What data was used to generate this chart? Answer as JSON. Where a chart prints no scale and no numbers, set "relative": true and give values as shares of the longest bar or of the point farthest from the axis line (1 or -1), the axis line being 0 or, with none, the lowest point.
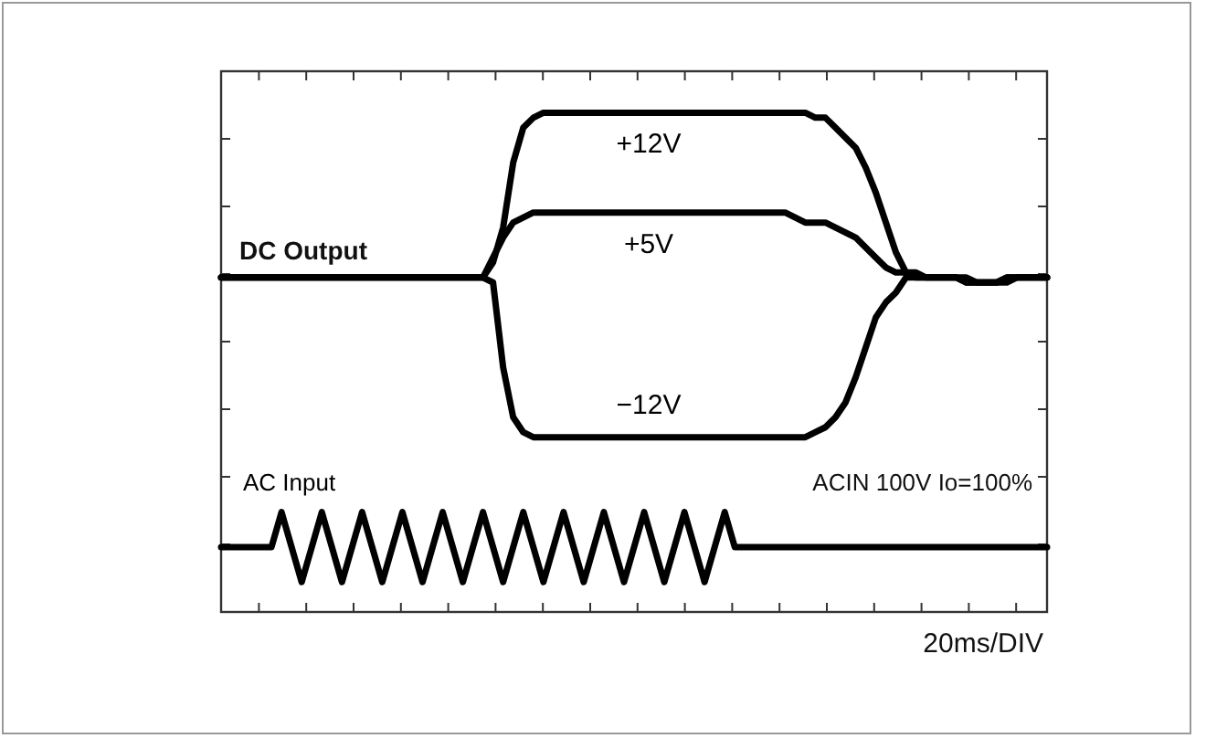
{
  "chart_data": {
    "type": "line",
    "relative": true,
    "xlabel": "20ms/DIV",
    "categories": [
      null,
      null,
      null,
      null,
      null,
      null,
      null,
      null,
      null,
      null,
      null,
      null,
      null,
      null,
      null,
      null,
      null,
      null,
      null,
      null,
      null,
      null,
      null,
      null,
      null,
      null,
      null,
      null,
      null,
      null,
      null,
      null,
      null,
      null,
      null,
      null,
      null,
      null,
      null,
      null,
      null,
      null,
      null,
      null,
      null,
      null,
      null,
      null,
      null,
      null,
      null,
      null,
      null,
      null,
      null,
      null,
      null,
      null,
      null,
      null,
      null,
      null,
      null,
      null,
      null,
      null,
      null,
      null,
      null,
      null,
      null,
      null,
      null,
      null,
      null,
      null,
      null,
      null,
      null,
      null,
      null,
      null,
      null
    ],
    "annotations": [
      "DC Output",
      "ACIN 100V Io=100%"
    ],
    "marker": "none",
    "line_style": "solid",
    "series": [
      {
        "name": "+12V",
        "color": "#000000",
        "values": [
          0.67,
          0.67,
          0.67,
          0.67,
          0.67,
          0.67,
          0.67,
          0.67,
          0.67,
          0.67,
          0.67,
          0.67,
          0.67,
          0.67,
          0.67,
          0.67,
          0.67,
          0.67,
          0.67,
          0.67,
          0.67,
          0.67,
          0.67,
          0.67,
          0.67,
          0.67,
          0.67,
          0.7,
          0.77,
          0.9,
          0.97,
          0.99,
          1,
          1,
          1,
          1,
          1,
          1,
          1,
          1,
          1,
          1,
          1,
          1,
          1,
          1,
          1,
          1,
          1,
          1,
          1,
          1,
          1,
          1,
          1,
          1,
          1,
          1,
          1,
          0.99,
          0.99,
          0.97,
          0.95,
          0.93,
          0.89,
          0.84,
          0.78,
          0.72,
          0.68,
          0.68,
          0.67,
          0.67,
          0.67,
          0.67,
          0.67,
          0.66,
          0.66,
          0.66,
          0.66,
          0.67,
          0.67,
          0.67,
          0.67
        ]
      },
      {
        "name": "+5V",
        "color": "#000000",
        "values": [
          0.67,
          0.67,
          0.67,
          0.67,
          0.67,
          0.67,
          0.67,
          0.67,
          0.67,
          0.67,
          0.67,
          0.67,
          0.67,
          0.67,
          0.67,
          0.67,
          0.67,
          0.67,
          0.67,
          0.67,
          0.67,
          0.67,
          0.67,
          0.67,
          0.67,
          0.67,
          0.67,
          0.71,
          0.75,
          0.78,
          0.79,
          0.8,
          0.8,
          0.8,
          0.8,
          0.8,
          0.8,
          0.8,
          0.8,
          0.8,
          0.8,
          0.8,
          0.8,
          0.8,
          0.8,
          0.8,
          0.8,
          0.8,
          0.8,
          0.8,
          0.8,
          0.8,
          0.8,
          0.8,
          0.8,
          0.8,
          0.8,
          0.79,
          0.78,
          0.78,
          0.78,
          0.77,
          0.76,
          0.75,
          0.73,
          0.71,
          0.69,
          0.68,
          0.68,
          0.67,
          0.67,
          0.67,
          0.67,
          0.67,
          0.66,
          0.66,
          0.66,
          0.66,
          0.67,
          0.67,
          0.67,
          0.67,
          0.67
        ]
      },
      {
        "name": "−12V",
        "color": "#000000",
        "values": [
          0.67,
          0.67,
          0.67,
          0.67,
          0.67,
          0.67,
          0.67,
          0.67,
          0.67,
          0.67,
          0.67,
          0.67,
          0.67,
          0.67,
          0.67,
          0.67,
          0.67,
          0.67,
          0.67,
          0.67,
          0.67,
          0.67,
          0.67,
          0.67,
          0.67,
          0.67,
          0.67,
          0.66,
          0.49,
          0.39,
          0.36,
          0.35,
          0.35,
          0.35,
          0.35,
          0.35,
          0.35,
          0.35,
          0.35,
          0.35,
          0.35,
          0.35,
          0.35,
          0.35,
          0.35,
          0.35,
          0.35,
          0.35,
          0.35,
          0.35,
          0.35,
          0.35,
          0.35,
          0.35,
          0.35,
          0.35,
          0.35,
          0.35,
          0.35,
          0.36,
          0.37,
          0.39,
          0.42,
          0.47,
          0.53,
          0.59,
          0.62,
          0.64,
          0.67,
          0.67,
          0.67,
          0.67,
          0.67,
          0.67,
          0.66,
          0.66,
          0.66,
          0.66,
          0.67,
          0.67,
          0.67,
          0.67,
          0.67
        ]
      },
      {
        "name": "AC Input",
        "color": "#000000",
        "values": [
          0.13,
          0.13,
          0.13,
          0.13,
          0.13,
          0.13,
          0.2,
          0.13,
          0.06,
          0.13,
          0.2,
          0.13,
          0.06,
          0.13,
          0.2,
          0.13,
          0.06,
          0.13,
          0.2,
          0.13,
          0.06,
          0.13,
          0.2,
          0.13,
          0.06,
          0.13,
          0.2,
          0.13,
          0.06,
          0.13,
          0.2,
          0.13,
          0.06,
          0.13,
          0.2,
          0.13,
          0.06,
          0.13,
          0.2,
          0.13,
          0.06,
          0.13,
          0.2,
          0.13,
          0.06,
          0.13,
          0.2,
          0.13,
          0.06,
          0.13,
          0.2,
          0.13,
          0.13,
          0.13,
          0.13,
          0.13,
          0.13,
          0.13,
          0.13,
          0.13,
          0.13,
          0.13,
          0.13,
          0.13,
          0.13,
          0.13,
          0.13,
          0.13,
          0.13,
          0.13,
          0.13,
          0.13,
          0.13,
          0.13,
          0.13,
          0.13,
          0.13,
          0.13,
          0.13,
          0.13,
          0.13,
          0.13,
          0.13
        ]
      }
    ]
  }
}
